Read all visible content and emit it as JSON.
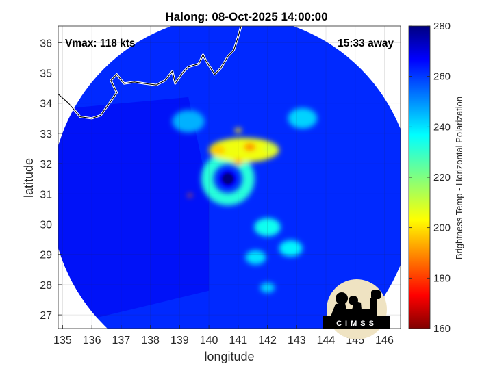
{
  "chart_data": {
    "type": "heatmap",
    "title": "Halong: 08-Oct-2025 14:00:00",
    "annotations": {
      "vmax": "Vmax: 118 kts",
      "away": "15:33 away",
      "logo": "CIMSS"
    },
    "xlabel": "longitude",
    "ylabel": "latitude",
    "xlim": [
      134.85,
      146.55
    ],
    "ylim": [
      26.55,
      36.55
    ],
    "xticks": [
      135,
      136,
      137,
      138,
      139,
      140,
      141,
      142,
      143,
      144,
      145,
      146
    ],
    "yticks": [
      27,
      28,
      29,
      30,
      31,
      32,
      33,
      34,
      35,
      36
    ],
    "grid": true,
    "colorbar": {
      "label": "Brightness Temp - Horizontal Polarization",
      "min": 160,
      "max": 280,
      "ticks": [
        160,
        180,
        200,
        220,
        240,
        260,
        280
      ],
      "colormap": "jet"
    },
    "storm_center": {
      "lon": 140.65,
      "lat": 31.5
    },
    "swath_center": {
      "lon": 140.8,
      "lat": 30.9
    },
    "swath_radius_deg": 6.2,
    "background_tb": 262,
    "features": [
      {
        "kind": "eye",
        "lon": 140.65,
        "lat": 31.5,
        "tb": 268,
        "radius_deg": 0.28
      },
      {
        "kind": "eyewall",
        "lon": 140.65,
        "lat": 31.5,
        "tb": 232,
        "radius_deg": 0.7
      },
      {
        "kind": "rainband",
        "lon": 141.2,
        "lat": 32.45,
        "tb": 205,
        "radius_deg": 1.2
      },
      {
        "kind": "cell",
        "lon": 140.3,
        "lat": 32.45,
        "tb": 197,
        "radius_deg": 0.25
      },
      {
        "kind": "cell",
        "lon": 141.4,
        "lat": 32.55,
        "tb": 190,
        "radius_deg": 0.2
      },
      {
        "kind": "cell",
        "lon": 141.0,
        "lat": 32.05,
        "tb": 192,
        "radius_deg": 0.15
      },
      {
        "kind": "cell",
        "lon": 141.0,
        "lat": 33.1,
        "tb": 200,
        "radius_deg": 0.12
      },
      {
        "kind": "cell",
        "lon": 142.1,
        "lat": 32.5,
        "tb": 210,
        "radius_deg": 0.2
      },
      {
        "kind": "cell",
        "lon": 139.35,
        "lat": 30.95,
        "tb": 185,
        "radius_deg": 0.08
      },
      {
        "kind": "outer-band",
        "lon": 142.0,
        "lat": 29.9,
        "tb": 235,
        "radius_deg": 0.45
      },
      {
        "kind": "outer-band",
        "lon": 142.8,
        "lat": 29.2,
        "tb": 238,
        "radius_deg": 0.4
      },
      {
        "kind": "outer-band",
        "lon": 141.6,
        "lat": 28.9,
        "tb": 240,
        "radius_deg": 0.35
      },
      {
        "kind": "outer-band",
        "lon": 143.2,
        "lat": 33.5,
        "tb": 242,
        "radius_deg": 0.5
      },
      {
        "kind": "outer-band",
        "lon": 142.0,
        "lat": 27.9,
        "tb": 242,
        "radius_deg": 0.25
      },
      {
        "kind": "outer-band",
        "lon": 139.3,
        "lat": 33.4,
        "tb": 246,
        "radius_deg": 0.55
      }
    ]
  }
}
